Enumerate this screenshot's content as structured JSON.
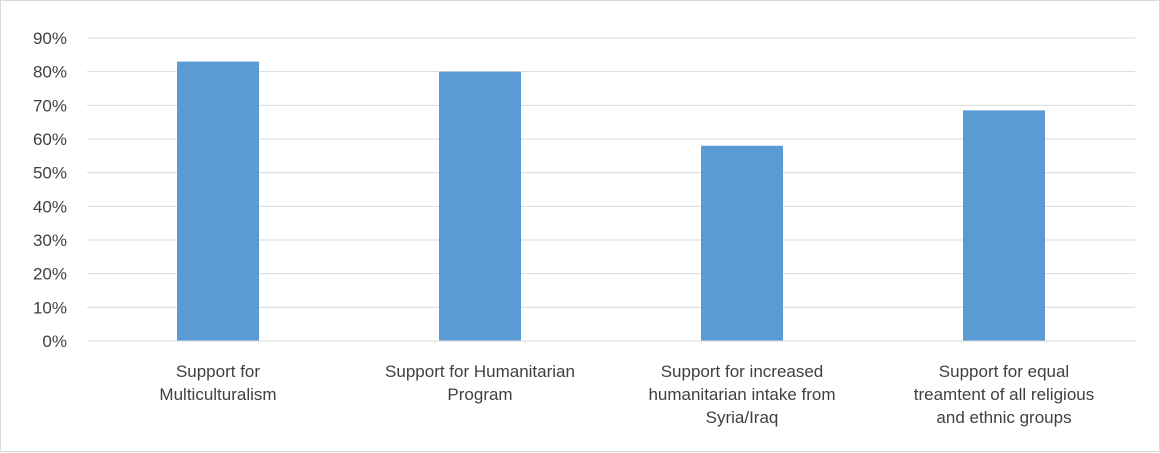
{
  "chart_data": {
    "type": "bar",
    "title": "",
    "xlabel": "",
    "ylabel": "",
    "categories": [
      [
        "Support for",
        "Multiculturalism"
      ],
      [
        "Support for Humanitarian",
        "Program"
      ],
      [
        "Support for increased",
        "humanitarian intake from",
        "Syria/Iraq"
      ],
      [
        "Support for equal",
        "treamtent of all religious",
        "and ethnic groups"
      ]
    ],
    "values": [
      83,
      80,
      58,
      68.5
    ],
    "ylim": [
      0,
      90
    ],
    "yticks": [
      0,
      10,
      20,
      30,
      40,
      50,
      60,
      70,
      80,
      90
    ],
    "tick_suffix": "%",
    "grid": true,
    "legend": "none",
    "colors": {
      "bar": "#5b9bd5",
      "grid": "#d9d9d9",
      "axis": "#d9d9d9",
      "text": "#404040"
    }
  }
}
